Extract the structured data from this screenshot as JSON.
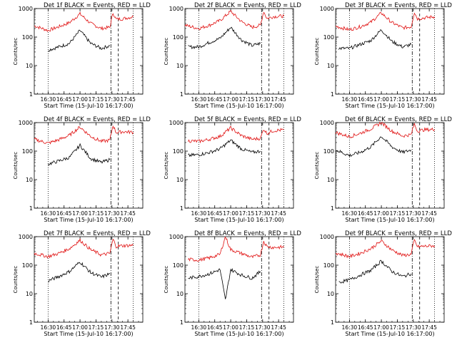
{
  "figure": {
    "xlabel": "Start Time (15-Jul-10 16:17:00)",
    "ylabel": "Counts/sec",
    "colors": {
      "events": "#000000",
      "lld": "#e01010",
      "axes": "#000000",
      "background": "#ffffff"
    }
  },
  "chart_data": [
    {
      "type": "line",
      "title": "Det 1f BLACK = Events, RED = LLD",
      "xlabel": "Start Time (15-Jul-10 16:17:00)",
      "ylabel": "Counts/sec",
      "x_ticks": [
        "16:30",
        "16:45",
        "17:00",
        "17:15",
        "17:30",
        "17:45"
      ],
      "y_ticks": [
        "1",
        "10",
        "100",
        "1000"
      ],
      "yscale": "log",
      "ylim": [
        1,
        1000
      ],
      "xlim": [
        "16:17",
        "17:59"
      ],
      "markers": {
        "dotted": [
          "16:30",
          "17:50"
        ],
        "dashdot": [
          "17:29"
        ],
        "dashed": [
          "17:36"
        ]
      },
      "series": [
        {
          "name": "LLD",
          "color": "#e01010",
          "x": [
            "16:17",
            "16:30",
            "16:40",
            "16:50",
            "17:00",
            "17:10",
            "17:20",
            "17:28",
            "17:31",
            "17:34",
            "17:40",
            "17:50"
          ],
          "y": [
            250,
            170,
            230,
            320,
            650,
            300,
            200,
            220,
            700,
            420,
            440,
            520
          ]
        },
        {
          "name": "Events",
          "color": "#000000",
          "x": [
            "16:30",
            "16:40",
            "16:50",
            "17:00",
            "17:10",
            "17:20",
            "17:28"
          ],
          "y": [
            35,
            45,
            60,
            170,
            60,
            40,
            50
          ]
        }
      ]
    },
    {
      "type": "line",
      "title": "Det 2f BLACK = Events, RED = LLD",
      "xlabel": "Start Time (15-Jul-10 16:17:00)",
      "ylabel": "Counts/sec",
      "x_ticks": [
        "16:30",
        "16:45",
        "17:00",
        "17:15",
        "17:30",
        "17:45"
      ],
      "y_ticks": [
        "1",
        "10",
        "100",
        "1000"
      ],
      "yscale": "log",
      "ylim": [
        1,
        1000
      ],
      "xlim": [
        "16:17",
        "17:59"
      ],
      "markers": {
        "dotted": [
          "16:30",
          "17:50"
        ],
        "dashdot": [
          "17:29"
        ],
        "dashed": [
          "17:36"
        ]
      },
      "series": [
        {
          "name": "LLD",
          "color": "#e01010",
          "x": [
            "16:17",
            "16:30",
            "16:40",
            "16:50",
            "17:00",
            "17:10",
            "17:20",
            "17:28",
            "17:31",
            "17:34",
            "17:40",
            "17:50"
          ],
          "y": [
            260,
            200,
            260,
            380,
            800,
            350,
            220,
            260,
            800,
            450,
            520,
            550
          ]
        },
        {
          "name": "Events",
          "color": "#000000",
          "x": [
            "16:20",
            "16:30",
            "16:40",
            "16:50",
            "17:00",
            "17:10",
            "17:20",
            "17:28"
          ],
          "y": [
            45,
            45,
            65,
            90,
            220,
            80,
            50,
            60
          ]
        }
      ]
    },
    {
      "type": "line",
      "title": "Det 3f BLACK = Events, RED = LLD",
      "xlabel": "Start Time (15-Jul-10 16:17:00)",
      "ylabel": "Counts/sec",
      "x_ticks": [
        "16:30",
        "16:45",
        "17:00",
        "17:15",
        "17:30",
        "17:45"
      ],
      "y_ticks": [
        "1",
        "10",
        "100",
        "1000"
      ],
      "yscale": "log",
      "ylim": [
        1,
        1000
      ],
      "xlim": [
        "16:17",
        "17:59"
      ],
      "markers": {
        "dotted": [
          "16:30",
          "17:50"
        ],
        "dashdot": [
          "17:29"
        ],
        "dashed": [
          "17:36"
        ]
      },
      "series": [
        {
          "name": "LLD",
          "color": "#e01010",
          "x": [
            "16:17",
            "16:30",
            "16:40",
            "16:50",
            "17:00",
            "17:10",
            "17:20",
            "17:28",
            "17:31",
            "17:34",
            "17:40",
            "17:50"
          ],
          "y": [
            240,
            180,
            230,
            330,
            700,
            320,
            210,
            230,
            750,
            440,
            470,
            520
          ]
        },
        {
          "name": "Events",
          "color": "#000000",
          "x": [
            "16:20",
            "16:30",
            "16:40",
            "16:50",
            "17:00",
            "17:10",
            "17:20",
            "17:28"
          ],
          "y": [
            40,
            40,
            55,
            75,
            180,
            70,
            45,
            55
          ]
        }
      ]
    },
    {
      "type": "line",
      "title": "Det 4f BLACK = Events, RED = LLD",
      "xlabel": "Start Time (15-Jul-10 16:17:00)",
      "ylabel": "Counts/sec",
      "x_ticks": [
        "16:30",
        "16:45",
        "17:00",
        "17:15",
        "17:30",
        "17:45"
      ],
      "y_ticks": [
        "1",
        "10",
        "100",
        "1000"
      ],
      "yscale": "log",
      "ylim": [
        1,
        1000
      ],
      "xlim": [
        "16:17",
        "17:59"
      ],
      "markers": {
        "dotted": [
          "16:30",
          "17:50"
        ],
        "dashdot": [
          "17:29"
        ],
        "dashed": [
          "17:36"
        ]
      },
      "series": [
        {
          "name": "LLD",
          "color": "#e01010",
          "x": [
            "16:17",
            "16:30",
            "16:40",
            "16:50",
            "17:00",
            "17:10",
            "17:20",
            "17:28",
            "17:31",
            "17:34",
            "17:40",
            "17:50"
          ],
          "y": [
            260,
            190,
            250,
            360,
            700,
            330,
            220,
            240,
            800,
            450,
            480,
            460
          ]
        },
        {
          "name": "Events",
          "color": "#000000",
          "x": [
            "16:30",
            "16:40",
            "16:50",
            "17:00",
            "17:10",
            "17:20",
            "17:28"
          ],
          "y": [
            35,
            45,
            60,
            160,
            55,
            40,
            50
          ]
        }
      ]
    },
    {
      "type": "line",
      "title": "Det 5f BLACK = Events, RED = LLD",
      "xlabel": "Start Time (15-Jul-10 16:17:00)",
      "ylabel": "Counts/sec",
      "x_ticks": [
        "16:30",
        "16:45",
        "17:00",
        "17:15",
        "17:30",
        "17:45"
      ],
      "y_ticks": [
        "1",
        "10",
        "100",
        "1000"
      ],
      "yscale": "log",
      "ylim": [
        1,
        1000
      ],
      "xlim": [
        "16:17",
        "17:59"
      ],
      "markers": {
        "dotted": [
          "16:30",
          "17:50"
        ],
        "dashdot": [
          "17:29"
        ],
        "dashed": [
          "17:36"
        ]
      },
      "series": [
        {
          "name": "LLD",
          "color": "#e01010",
          "x": [
            "16:20",
            "16:30",
            "16:40",
            "16:50",
            "17:00",
            "17:10",
            "17:20",
            "17:28",
            "17:31",
            "17:34",
            "17:40",
            "17:50"
          ],
          "y": [
            230,
            220,
            260,
            330,
            650,
            350,
            260,
            280,
            600,
            420,
            520,
            560
          ]
        },
        {
          "name": "Events",
          "color": "#000000",
          "x": [
            "16:20",
            "16:30",
            "16:40",
            "16:50",
            "17:00",
            "17:10",
            "17:20",
            "17:28"
          ],
          "y": [
            70,
            75,
            90,
            120,
            240,
            120,
            90,
            100
          ]
        }
      ]
    },
    {
      "type": "line",
      "title": "Det 6f BLACK = Events, RED = LLD",
      "xlabel": "Start Time (15-Jul-10 16:17:00)",
      "ylabel": "Counts/sec",
      "x_ticks": [
        "16:30",
        "16:45",
        "17:00",
        "17:15",
        "17:30",
        "17:45"
      ],
      "y_ticks": [
        "1",
        "10",
        "100",
        "1000"
      ],
      "yscale": "log",
      "ylim": [
        1,
        1000
      ],
      "xlim": [
        "16:17",
        "17:59"
      ],
      "markers": {
        "dotted": [
          "16:30",
          "17:50"
        ],
        "dashdot": [
          "17:29"
        ],
        "dashed": [
          "17:36"
        ]
      },
      "series": [
        {
          "name": "LLD",
          "color": "#e01010",
          "x": [
            "16:17",
            "16:30",
            "16:40",
            "16:50",
            "17:00",
            "17:10",
            "17:20",
            "17:28",
            "17:31",
            "17:34",
            "17:40",
            "17:50"
          ],
          "y": [
            450,
            320,
            420,
            600,
            1000,
            500,
            340,
            380,
            900,
            500,
            560,
            580
          ]
        },
        {
          "name": "Events",
          "color": "#000000",
          "x": [
            "16:17",
            "16:30",
            "16:40",
            "16:50",
            "17:00",
            "17:10",
            "17:20",
            "17:28"
          ],
          "y": [
            110,
            70,
            90,
            140,
            330,
            140,
            90,
            110
          ]
        }
      ]
    },
    {
      "type": "line",
      "title": "Det 7f BLACK = Events, RED = LLD",
      "xlabel": "Start Time (15-Jul-10 16:17:00)",
      "ylabel": "Counts/sec",
      "x_ticks": [
        "16:30",
        "16:45",
        "17:00",
        "17:15",
        "17:30",
        "17:45"
      ],
      "y_ticks": [
        "1",
        "10",
        "100",
        "1000"
      ],
      "yscale": "log",
      "ylim": [
        1,
        1000
      ],
      "xlim": [
        "16:17",
        "17:59"
      ],
      "markers": {
        "dotted": [
          "16:30",
          "17:50"
        ],
        "dashdot": [
          "17:29"
        ],
        "dashed": [
          "17:36"
        ]
      },
      "series": [
        {
          "name": "LLD",
          "color": "#e01010",
          "x": [
            "16:17",
            "16:30",
            "16:40",
            "16:50",
            "17:00",
            "17:10",
            "17:20",
            "17:28",
            "17:31",
            "17:34",
            "17:40",
            "17:50"
          ],
          "y": [
            260,
            200,
            260,
            380,
            750,
            350,
            230,
            260,
            800,
            460,
            480,
            500
          ]
        },
        {
          "name": "Events",
          "color": "#000000",
          "x": [
            "16:30",
            "16:40",
            "16:50",
            "17:00",
            "17:10",
            "17:20",
            "17:28"
          ],
          "y": [
            28,
            40,
            60,
            130,
            55,
            38,
            50
          ]
        }
      ]
    },
    {
      "type": "line",
      "title": "Det 8f BLACK = Events, RED = LLD",
      "xlabel": "Start Time (15-Jul-10 16:17:00)",
      "ylabel": "Counts/sec",
      "x_ticks": [
        "16:30",
        "16:45",
        "17:00",
        "17:15",
        "17:30",
        "17:45"
      ],
      "y_ticks": [
        "1",
        "10",
        "100",
        "1000"
      ],
      "yscale": "log",
      "ylim": [
        1,
        1000
      ],
      "xlim": [
        "16:17",
        "17:59"
      ],
      "markers": {
        "dotted": [
          "16:30",
          "17:50"
        ],
        "dashdot": [
          "17:29"
        ],
        "dashed": [
          "17:36"
        ]
      },
      "series": [
        {
          "name": "LLD",
          "color": "#e01010",
          "x": [
            "16:20",
            "16:30",
            "16:40",
            "16:50",
            "16:55",
            "17:00",
            "17:10",
            "17:20",
            "17:28",
            "17:31",
            "17:34",
            "17:40",
            "17:50"
          ],
          "y": [
            160,
            150,
            180,
            240,
            1000,
            350,
            260,
            190,
            230,
            700,
            450,
            420,
            430
          ]
        },
        {
          "name": "Events",
          "color": "#000000",
          "x": [
            "16:20",
            "16:30",
            "16:40",
            "16:50",
            "16:55",
            "17:00",
            "17:10",
            "17:20",
            "17:28"
          ],
          "y": [
            35,
            40,
            50,
            70,
            6,
            70,
            45,
            35,
            60
          ]
        }
      ]
    },
    {
      "type": "line",
      "title": "Det 9f BLACK = Events, RED = LLD",
      "xlabel": "Start Time (15-Jul-10 16:17:00)",
      "ylabel": "Counts/sec",
      "x_ticks": [
        "16:30",
        "16:45",
        "17:00",
        "17:15",
        "17:30",
        "17:45"
      ],
      "y_ticks": [
        "1",
        "10",
        "100",
        "1000"
      ],
      "yscale": "log",
      "ylim": [
        1,
        1000
      ],
      "xlim": [
        "16:17",
        "17:59"
      ],
      "markers": {
        "dotted": [
          "16:30",
          "17:50"
        ],
        "dashdot": [
          "17:29"
        ],
        "dashed": [
          "17:36"
        ]
      },
      "series": [
        {
          "name": "LLD",
          "color": "#e01010",
          "x": [
            "16:17",
            "16:30",
            "16:40",
            "16:50",
            "17:00",
            "17:10",
            "17:20",
            "17:28",
            "17:31",
            "17:34",
            "17:40",
            "17:50"
          ],
          "y": [
            270,
            200,
            260,
            380,
            700,
            340,
            220,
            240,
            750,
            440,
            460,
            480
          ]
        },
        {
          "name": "Events",
          "color": "#000000",
          "x": [
            "16:20",
            "16:30",
            "16:40",
            "16:50",
            "17:00",
            "17:10",
            "17:20",
            "17:28"
          ],
          "y": [
            25,
            30,
            45,
            65,
            140,
            60,
            40,
            50
          ]
        }
      ]
    }
  ]
}
